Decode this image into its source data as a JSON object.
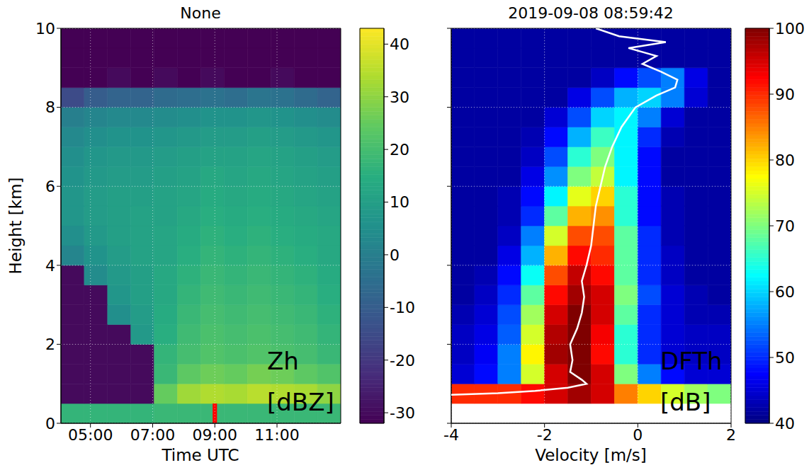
{
  "chart_data": [
    {
      "type": "heatmap",
      "title": "None",
      "x_label": "Time UTC",
      "y_label": "Height [km]",
      "xlim": [
        4.05,
        13.05
      ],
      "ylim": [
        0,
        10
      ],
      "xticks": [
        {
          "value": 5,
          "label": "05:00"
        },
        {
          "value": 7,
          "label": "07:00"
        },
        {
          "value": 9,
          "label": "09:00"
        },
        {
          "value": 11,
          "label": "11:00"
        }
      ],
      "yticks": [
        0,
        2,
        4,
        6,
        8,
        10
      ],
      "grid": true,
      "annotations": [
        "Zh",
        "[dBZ]"
      ],
      "highlight": {
        "x": [
          8.93,
          9.07
        ],
        "y": [
          0,
          0.5
        ],
        "color": "#ff0000"
      },
      "heatmap": {
        "x_edges": [
          4.05,
          4.8,
          5.55,
          6.3,
          7.05,
          7.8,
          8.55,
          9.3,
          10.05,
          10.8,
          11.55,
          12.3,
          13.05
        ],
        "y_edges": [
          0,
          0.5,
          1,
          1.5,
          2,
          2.5,
          3,
          3.5,
          4,
          4.5,
          5,
          5.5,
          6,
          6.5,
          7,
          7.5,
          8,
          8.5,
          9,
          9.5,
          10
        ],
        "cells": [
          [
            17,
            17,
            17,
            17,
            18,
            18,
            18,
            18,
            18,
            18,
            18,
            18
          ],
          [
            -30,
            -30,
            -30,
            -30,
            25,
            32,
            34,
            33,
            35,
            34,
            33,
            30
          ],
          [
            -30,
            -30,
            -30,
            -30,
            18,
            24,
            26,
            25,
            27,
            26,
            24,
            22
          ],
          [
            -30,
            -30,
            -30,
            -30,
            17,
            20,
            22,
            21,
            22,
            21,
            20,
            18
          ],
          [
            -30,
            -30,
            -30,
            8,
            15,
            19,
            21,
            20,
            21,
            20,
            19,
            17
          ],
          [
            -30,
            -30,
            5,
            9,
            14,
            18,
            20,
            19,
            20,
            19,
            18,
            16
          ],
          [
            -30,
            -30,
            7,
            10,
            13,
            17,
            19,
            18,
            19,
            18,
            17,
            15
          ],
          [
            -30,
            4,
            8,
            10,
            13,
            16,
            18,
            17,
            18,
            17,
            16,
            14
          ],
          [
            2,
            6,
            9,
            11,
            12,
            15,
            17,
            16,
            17,
            16,
            15,
            13
          ],
          [
            5,
            8,
            10,
            11,
            12,
            14,
            16,
            15,
            16,
            15,
            14,
            13
          ],
          [
            7,
            9,
            10,
            11,
            11,
            13,
            15,
            14,
            15,
            14,
            13,
            12
          ],
          [
            7,
            9,
            10,
            10,
            11,
            12,
            14,
            13,
            14,
            13,
            12,
            11
          ],
          [
            6,
            8,
            9,
            9,
            10,
            11,
            13,
            12,
            13,
            12,
            11,
            10
          ],
          [
            5,
            7,
            8,
            8,
            9,
            10,
            11,
            11,
            12,
            11,
            10,
            9
          ],
          [
            3,
            5,
            6,
            6,
            7,
            8,
            9,
            9,
            10,
            9,
            8,
            7
          ],
          [
            0,
            2,
            3,
            3,
            4,
            5,
            6,
            6,
            7,
            6,
            5,
            4
          ],
          [
            -15,
            -10,
            -8,
            -8,
            -6,
            -5,
            -4,
            -5,
            -3,
            -4,
            -6,
            -8
          ],
          [
            -32,
            -32,
            -30,
            -32,
            -30,
            -32,
            -30,
            -32,
            -32,
            -30,
            -32,
            -32
          ],
          [
            -32,
            -32,
            -32,
            -32,
            -32,
            -32,
            -32,
            -32,
            -32,
            -32,
            -32,
            -32
          ],
          [
            -32,
            -32,
            -32,
            -32,
            -32,
            -32,
            -32,
            -32,
            -32,
            -32,
            -32,
            -32
          ]
        ],
        "colorbar": {
          "range": [
            -32,
            43
          ],
          "ticks": [
            -30,
            -20,
            -10,
            0,
            10,
            20,
            30,
            40
          ],
          "color": "viridis"
        }
      }
    },
    {
      "type": "heatmap",
      "title": "2019-09-08 08:59:42",
      "x_label": "Velocity [m/s]",
      "xlim": [
        -4,
        2
      ],
      "ylim": [
        0,
        10
      ],
      "xticks": [
        -4,
        -2,
        0,
        2
      ],
      "yticks": [
        0,
        2,
        4,
        6,
        8,
        10
      ],
      "grid": true,
      "tick_labels": "x",
      "annotations": [
        "DFTh",
        "[dB]"
      ],
      "series": [
        {
          "color": "#ffffff",
          "x": [
            -4.0,
            -3.0,
            -2.2,
            -1.5,
            -1.1,
            -1.2,
            -1.45,
            -1.4,
            -1.45,
            -1.3,
            -1.2,
            -1.15,
            -1.2,
            -1.1,
            -1.0,
            -0.95,
            -0.9,
            -0.8,
            -0.7,
            -0.55,
            -0.35,
            -0.05,
            0.4,
            0.8,
            0.85,
            0.5,
            0.1,
            0.4,
            -0.2,
            0.6,
            -0.4,
            -0.9
          ],
          "y": [
            0.72,
            0.76,
            0.82,
            0.9,
            1.0,
            1.1,
            1.3,
            1.6,
            2.0,
            2.4,
            2.8,
            3.2,
            3.6,
            4.0,
            4.5,
            5.0,
            5.5,
            6.0,
            6.5,
            7.0,
            7.5,
            8.0,
            8.3,
            8.5,
            8.7,
            8.9,
            9.1,
            9.3,
            9.5,
            9.65,
            9.8,
            10.0
          ]
        }
      ],
      "heatmap": {
        "x_edges": [
          -4,
          -3.5,
          -3,
          -2.5,
          -2,
          -1.5,
          -1,
          -0.5,
          0,
          0.5,
          1,
          1.5,
          2
        ],
        "y_edges": [
          0,
          0.5,
          1,
          1.5,
          2,
          2.5,
          3,
          3.5,
          4,
          4.5,
          5,
          5.5,
          6,
          6.5,
          7,
          7.5,
          8,
          8.5,
          9,
          9.5,
          10
        ],
        "cells": [
          [
            null,
            null,
            null,
            null,
            null,
            null,
            null,
            null,
            null,
            null,
            null,
            null
          ],
          [
            90,
            90,
            90,
            92,
            95,
            98,
            95,
            85,
            80,
            75,
            72,
            70
          ],
          [
            45,
            48,
            55,
            75,
            95,
            100,
            95,
            70,
            55,
            48,
            45,
            45
          ],
          [
            44,
            47,
            55,
            78,
            98,
            100,
            92,
            65,
            50,
            45,
            44,
            44
          ],
          [
            44,
            46,
            53,
            75,
            97,
            100,
            93,
            65,
            50,
            45,
            44,
            44
          ],
          [
            43,
            45,
            52,
            72,
            95,
            100,
            95,
            68,
            50,
            45,
            43,
            43
          ],
          [
            42,
            44,
            50,
            68,
            92,
            98,
            95,
            70,
            52,
            45,
            43,
            42
          ],
          [
            42,
            43,
            48,
            63,
            88,
            96,
            92,
            68,
            50,
            44,
            42,
            42
          ],
          [
            42,
            42,
            46,
            58,
            82,
            92,
            90,
            68,
            50,
            44,
            42,
            42
          ],
          [
            42,
            42,
            44,
            55,
            75,
            88,
            88,
            68,
            50,
            43,
            42,
            42
          ],
          [
            42,
            42,
            43,
            50,
            68,
            82,
            84,
            65,
            48,
            43,
            42,
            42
          ],
          [
            42,
            42,
            43,
            48,
            62,
            76,
            80,
            65,
            48,
            43,
            42,
            42
          ],
          [
            42,
            42,
            42,
            46,
            56,
            70,
            74,
            62,
            48,
            42,
            42,
            42
          ],
          [
            42,
            42,
            42,
            44,
            52,
            65,
            70,
            62,
            48,
            42,
            42,
            42
          ],
          [
            42,
            42,
            42,
            43,
            48,
            58,
            66,
            62,
            50,
            43,
            42,
            42
          ],
          [
            42,
            42,
            42,
            42,
            45,
            52,
            60,
            62,
            55,
            45,
            42,
            42
          ],
          [
            42,
            42,
            42,
            42,
            42,
            46,
            52,
            58,
            60,
            55,
            45,
            42
          ],
          [
            42,
            42,
            42,
            42,
            42,
            42,
            44,
            48,
            52,
            55,
            46,
            42
          ],
          [
            42,
            42,
            42,
            42,
            42,
            42,
            42,
            42,
            42,
            42,
            42,
            42
          ],
          [
            42,
            42,
            42,
            42,
            42,
            42,
            42,
            42,
            42,
            42,
            42,
            42
          ]
        ],
        "colorbar": {
          "range": [
            40,
            100
          ],
          "ticks": [
            40,
            50,
            60,
            70,
            80,
            90,
            100
          ],
          "color": "jet"
        }
      }
    }
  ]
}
